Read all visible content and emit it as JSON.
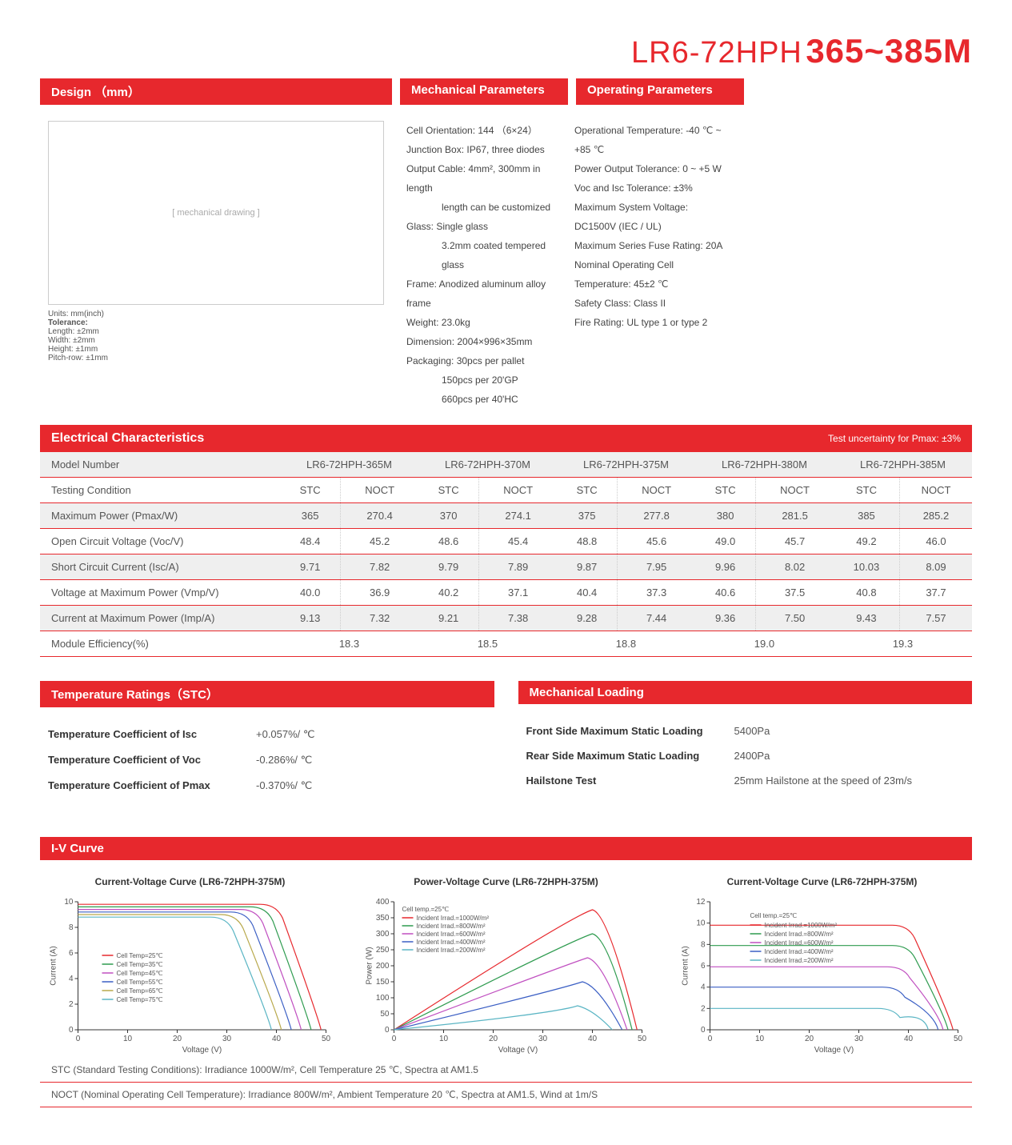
{
  "title": {
    "prefix": "LR6-72HPH",
    "suffix": "365~385M"
  },
  "headers": {
    "design": "Design （mm）",
    "mech": "Mechanical Parameters",
    "oper": "Operating Parameters",
    "elec": "Electrical Characteristics",
    "elec_note": "Test uncertainty for Pmax: ±3%",
    "temp": "Temperature Ratings（STC）",
    "load": "Mechanical Loading",
    "iv": "I-V Curve"
  },
  "design_caption": {
    "units": "Units: mm(inch)",
    "tol_label": "Tolerance:",
    "tol_length": "Length: ±2mm",
    "tol_width": "Width: ±2mm",
    "tol_height": "Height: ±1mm",
    "tol_pitch": "Pitch-row: ±1mm"
  },
  "mech_params": [
    "Cell Orientation: 144 （6×24）",
    "Junction Box: IP67, three diodes",
    "Output Cable: 4mm², 300mm in length",
    "length can be customized",
    "Glass: Single glass",
    "3.2mm coated tempered glass",
    "Frame: Anodized aluminum alloy frame",
    "Weight: 23.0kg",
    "Dimension: 2004×996×35mm",
    "Packaging: 30pcs per pallet",
    "150pcs per 20'GP",
    "660pcs per 40'HC"
  ],
  "mech_indent": [
    false,
    false,
    false,
    true,
    false,
    true,
    false,
    false,
    false,
    false,
    true,
    true
  ],
  "oper_params": [
    "Operational Temperature: -40 ℃ ~ +85 ℃",
    "Power Output Tolerance: 0 ~ +5 W",
    "Voc and Isc Tolerance: ±3%",
    "Maximum System Voltage: DC1500V (IEC / UL)",
    "Maximum Series Fuse Rating: 20A",
    "Nominal Operating Cell Temperature: 45±2 ℃",
    "Safety Class: Class II",
    "Fire Rating: UL type 1 or type 2"
  ],
  "elec_table": {
    "models": [
      "LR6-72HPH-365M",
      "LR6-72HPH-370M",
      "LR6-72HPH-375M",
      "LR6-72HPH-380M",
      "LR6-72HPH-385M"
    ],
    "cond_labels": [
      "STC",
      "NOCT"
    ],
    "row_labels": [
      "Model Number",
      "Testing Condition",
      "Maximum Power (Pmax/W)",
      "Open Circuit Voltage (Voc/V)",
      "Short Circuit Current (Isc/A)",
      "Voltage at Maximum Power (Vmp/V)",
      "Current at Maximum Power (Imp/A)",
      "Module Efficiency(%)"
    ],
    "rows": [
      [
        "365",
        "270.4",
        "370",
        "274.1",
        "375",
        "277.8",
        "380",
        "281.5",
        "385",
        "285.2"
      ],
      [
        "48.4",
        "45.2",
        "48.6",
        "45.4",
        "48.8",
        "45.6",
        "49.0",
        "45.7",
        "49.2",
        "46.0"
      ],
      [
        "9.71",
        "7.82",
        "9.79",
        "7.89",
        "9.87",
        "7.95",
        "9.96",
        "8.02",
        "10.03",
        "8.09"
      ],
      [
        "40.0",
        "36.9",
        "40.2",
        "37.1",
        "40.4",
        "37.3",
        "40.6",
        "37.5",
        "40.8",
        "37.7"
      ],
      [
        "9.13",
        "7.32",
        "9.21",
        "7.38",
        "9.28",
        "7.44",
        "9.36",
        "7.50",
        "9.43",
        "7.57"
      ]
    ],
    "efficiency": [
      "18.3",
      "18.5",
      "18.8",
      "19.0",
      "19.3"
    ],
    "footnotes": [
      "STC (Standard Testing Conditions): Irradiance 1000W/m², Cell Temperature 25 ℃, Spectra at AM1.5",
      "NOCT (Nominal Operating Cell Temperature): Irradiance 800W/m², Ambient Temperature 20 ℃, Spectra at AM1.5, Wind at 1m/S"
    ]
  },
  "temp_ratings": [
    {
      "k": "Temperature Coefficient of  Isc",
      "v": "+0.057%/ ℃"
    },
    {
      "k": "Temperature Coefficient of  Voc",
      "v": "-0.286%/ ℃"
    },
    {
      "k": "Temperature Coefficient of  Pmax",
      "v": "-0.370%/ ℃"
    }
  ],
  "mech_load": [
    {
      "k": "Front Side Maximum Static Loading",
      "v": "5400Pa"
    },
    {
      "k": "Rear Side Maximum Static Loading",
      "v": "2400Pa"
    },
    {
      "k": "Hailstone Test",
      "v": "25mm Hailstone at the speed of 23m/s"
    }
  ],
  "charts": {
    "c1": {
      "title": "Current-Voltage Curve (LR6-72HPH-375M)",
      "xlabel": "Voltage (V)",
      "ylabel": "Current (A)",
      "xlim": [
        0,
        50
      ],
      "ylim": [
        0,
        10
      ],
      "xtick": 10,
      "ytick": 2,
      "legend_prefix": "Cell Temp=",
      "series": [
        {
          "label": "25℃",
          "color": "#e7282d",
          "knee_x": 40,
          "voc": 49,
          "isc": 9.8
        },
        {
          "label": "35℃",
          "color": "#2e9b4f",
          "knee_x": 38,
          "voc": 47,
          "isc": 9.6
        },
        {
          "label": "45℃",
          "color": "#c04fc0",
          "knee_x": 36,
          "voc": 45,
          "isc": 9.4
        },
        {
          "label": "55℃",
          "color": "#3b5fc4",
          "knee_x": 34,
          "voc": 43,
          "isc": 9.2
        },
        {
          "label": "65℃",
          "color": "#b8a84a",
          "knee_x": 32,
          "voc": 41,
          "isc": 9.0
        },
        {
          "label": "75℃",
          "color": "#5ab5c4",
          "knee_x": 30,
          "voc": 39,
          "isc": 8.8
        }
      ]
    },
    "c2": {
      "title": "Power-Voltage Curve (LR6-72HPH-375M)",
      "xlabel": "Voltage (V)",
      "ylabel": "Power (W)",
      "xlim": [
        0,
        50
      ],
      "ylim": [
        0,
        400
      ],
      "xtick": 10,
      "ytick": 50,
      "legend_label": "Cell temp.=25℃",
      "legend_prefix": "Incident Irrad.=",
      "series": [
        {
          "label": "1000W/m²",
          "color": "#e7282d",
          "peak_x": 40,
          "peak_y": 375,
          "voc": 49
        },
        {
          "label": "800W/m²",
          "color": "#2e9b4f",
          "peak_x": 40,
          "peak_y": 300,
          "voc": 48
        },
        {
          "label": "600W/m²",
          "color": "#c04fc0",
          "peak_x": 39,
          "peak_y": 225,
          "voc": 47
        },
        {
          "label": "400W/m²",
          "color": "#3b5fc4",
          "peak_x": 38,
          "peak_y": 150,
          "voc": 46
        },
        {
          "label": "200W/m²",
          "color": "#5ab5c4",
          "peak_x": 37,
          "peak_y": 75,
          "voc": 44
        }
      ]
    },
    "c3": {
      "title": "Current-Voltage Curve (LR6-72HPH-375M)",
      "xlabel": "Voltage (V)",
      "ylabel": "Current (A)",
      "xlim": [
        0,
        50
      ],
      "ylim": [
        0,
        12
      ],
      "xtick": 10,
      "ytick": 2,
      "legend_label": "Cell temp.=25℃",
      "legend_prefix": "Incident Irrad.=",
      "series": [
        {
          "label": "1000W/m²",
          "color": "#e7282d",
          "knee_x": 40,
          "voc": 49,
          "isc": 9.8
        },
        {
          "label": "800W/m²",
          "color": "#2e9b4f",
          "knee_x": 40,
          "voc": 48,
          "isc": 7.9
        },
        {
          "label": "600W/m²",
          "color": "#c04fc0",
          "knee_x": 39,
          "voc": 47,
          "isc": 5.9
        },
        {
          "label": "400W/m²",
          "color": "#3b5fc4",
          "knee_x": 38,
          "voc": 46,
          "isc": 4.0
        },
        {
          "label": "200W/m²",
          "color": "#5ab5c4",
          "knee_x": 37,
          "voc": 44,
          "isc": 2.0
        }
      ]
    }
  }
}
